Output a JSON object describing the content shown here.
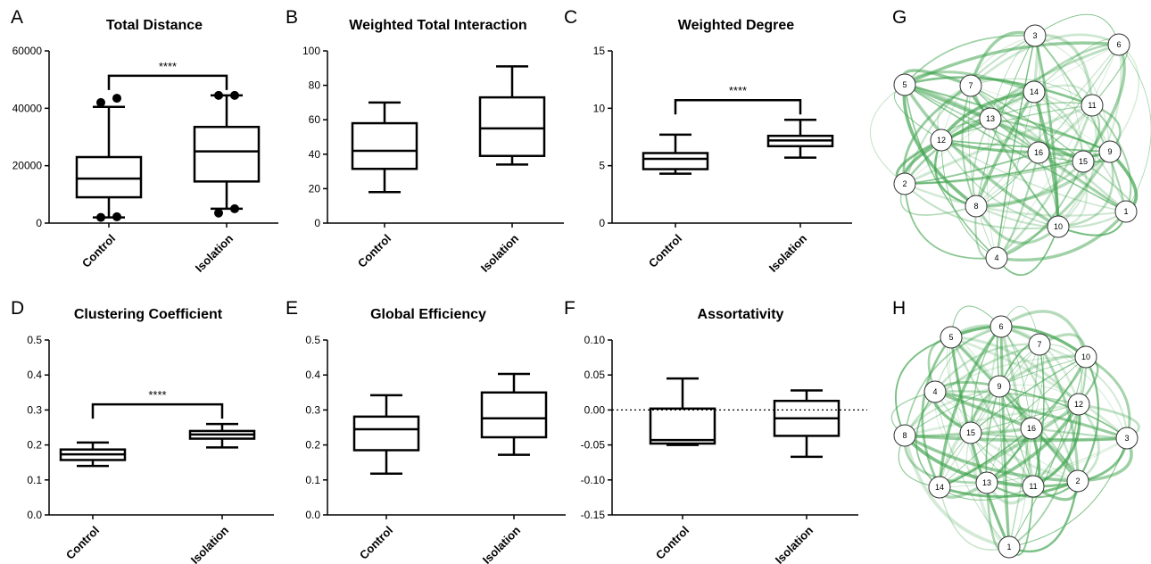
{
  "colors": {
    "box_stroke": "#000000",
    "edge_base": "#3fa34d",
    "node_fill": "#ffffff",
    "node_stroke": "#333333"
  },
  "chart_data": [
    {
      "id": "A",
      "letter": "A",
      "type": "box",
      "title": "Total Distance",
      "categories": [
        "Control",
        "Isolation"
      ],
      "ylim": [
        0,
        60000
      ],
      "yticks": [
        0,
        20000,
        40000,
        60000
      ],
      "ytick_labels": [
        "0",
        "20000",
        "40000",
        "60000"
      ],
      "boxes": [
        {
          "min": 2000,
          "q1": 9000,
          "median": 15500,
          "q3": 23000,
          "max": 40500,
          "outliers": [
            42000,
            43500,
            2000,
            2200
          ]
        },
        {
          "min": 5000,
          "q1": 14500,
          "median": 25000,
          "q3": 33500,
          "max": 44500,
          "outliers": [
            44500,
            44500,
            3500,
            5000
          ]
        }
      ],
      "significance": "****",
      "zero_line": false
    },
    {
      "id": "B",
      "letter": "B",
      "type": "box",
      "title": "Weighted Total Interaction",
      "categories": [
        "Control",
        "Isolation"
      ],
      "ylim": [
        0,
        100
      ],
      "yticks": [
        0,
        20,
        40,
        60,
        80,
        100
      ],
      "ytick_labels": [
        "0",
        "20",
        "40",
        "60",
        "80",
        "100"
      ],
      "boxes": [
        {
          "min": 18,
          "q1": 31.5,
          "median": 42,
          "q3": 58,
          "max": 70,
          "outliers": []
        },
        {
          "min": 34,
          "q1": 39,
          "median": 55,
          "q3": 73,
          "max": 91,
          "outliers": []
        }
      ],
      "significance": "",
      "zero_line": false
    },
    {
      "id": "C",
      "letter": "C",
      "type": "box",
      "title": "Weighted Degree",
      "categories": [
        "Control",
        "Isolation"
      ],
      "ylim": [
        0,
        15
      ],
      "yticks": [
        0,
        5,
        10,
        15
      ],
      "ytick_labels": [
        "0",
        "5",
        "10",
        "15"
      ],
      "boxes": [
        {
          "min": 4.3,
          "q1": 4.7,
          "median": 5.6,
          "q3": 6.1,
          "max": 7.7,
          "outliers": []
        },
        {
          "min": 5.7,
          "q1": 6.7,
          "median": 7.2,
          "q3": 7.6,
          "max": 9.0,
          "outliers": []
        }
      ],
      "significance": "****",
      "zero_line": false
    },
    {
      "id": "D",
      "letter": "D",
      "type": "box",
      "title": "Clustering Coefficient",
      "categories": [
        "Control",
        "Isolation"
      ],
      "ylim": [
        0,
        0.5
      ],
      "yticks": [
        0,
        0.1,
        0.2,
        0.3,
        0.4,
        0.5
      ],
      "ytick_labels": [
        "0.0",
        "0.1",
        "0.2",
        "0.3",
        "0.4",
        "0.5"
      ],
      "boxes": [
        {
          "min": 0.14,
          "q1": 0.157,
          "median": 0.173,
          "q3": 0.187,
          "max": 0.207,
          "outliers": []
        },
        {
          "min": 0.193,
          "q1": 0.218,
          "median": 0.23,
          "q3": 0.24,
          "max": 0.26,
          "outliers": []
        }
      ],
      "significance": "****",
      "zero_line": false
    },
    {
      "id": "E",
      "letter": "E",
      "type": "box",
      "title": "Global Efficiency",
      "categories": [
        "Control",
        "Isolation"
      ],
      "ylim": [
        0,
        0.5
      ],
      "yticks": [
        0,
        0.1,
        0.2,
        0.3,
        0.4,
        0.5
      ],
      "ytick_labels": [
        "0.0",
        "0.1",
        "0.2",
        "0.3",
        "0.4",
        "0.5"
      ],
      "boxes": [
        {
          "min": 0.118,
          "q1": 0.185,
          "median": 0.245,
          "q3": 0.281,
          "max": 0.342,
          "outliers": []
        },
        {
          "min": 0.172,
          "q1": 0.222,
          "median": 0.276,
          "q3": 0.35,
          "max": 0.403,
          "outliers": []
        }
      ],
      "significance": "",
      "zero_line": false
    },
    {
      "id": "F",
      "letter": "F",
      "type": "box",
      "title": "Assortativity",
      "categories": [
        "Control",
        "Isolation"
      ],
      "ylim": [
        -0.15,
        0.1
      ],
      "yticks": [
        -0.15,
        -0.1,
        -0.05,
        0,
        0.05,
        0.1
      ],
      "ytick_labels": [
        "-0.15",
        "-0.10",
        "-0.05",
        "0.00",
        "0.05",
        "0.10"
      ],
      "boxes": [
        {
          "min": -0.05,
          "q1": -0.048,
          "median": -0.043,
          "q3": 0.002,
          "max": 0.045,
          "outliers": []
        },
        {
          "min": -0.067,
          "q1": -0.037,
          "median": -0.012,
          "q3": 0.013,
          "max": 0.028,
          "outliers": []
        }
      ],
      "significance": "",
      "zero_line": true
    },
    {
      "id": "G",
      "letter": "G",
      "type": "network",
      "nodes": [
        "1",
        "2",
        "3",
        "4",
        "5",
        "6",
        "7",
        "8",
        "9",
        "10",
        "11",
        "12",
        "13",
        "14",
        "15",
        "16"
      ]
    },
    {
      "id": "H",
      "letter": "H",
      "type": "network",
      "nodes": [
        "1",
        "2",
        "3",
        "4",
        "5",
        "6",
        "7",
        "8",
        "9",
        "10",
        "11",
        "12",
        "13",
        "14",
        "15",
        "16"
      ]
    }
  ]
}
